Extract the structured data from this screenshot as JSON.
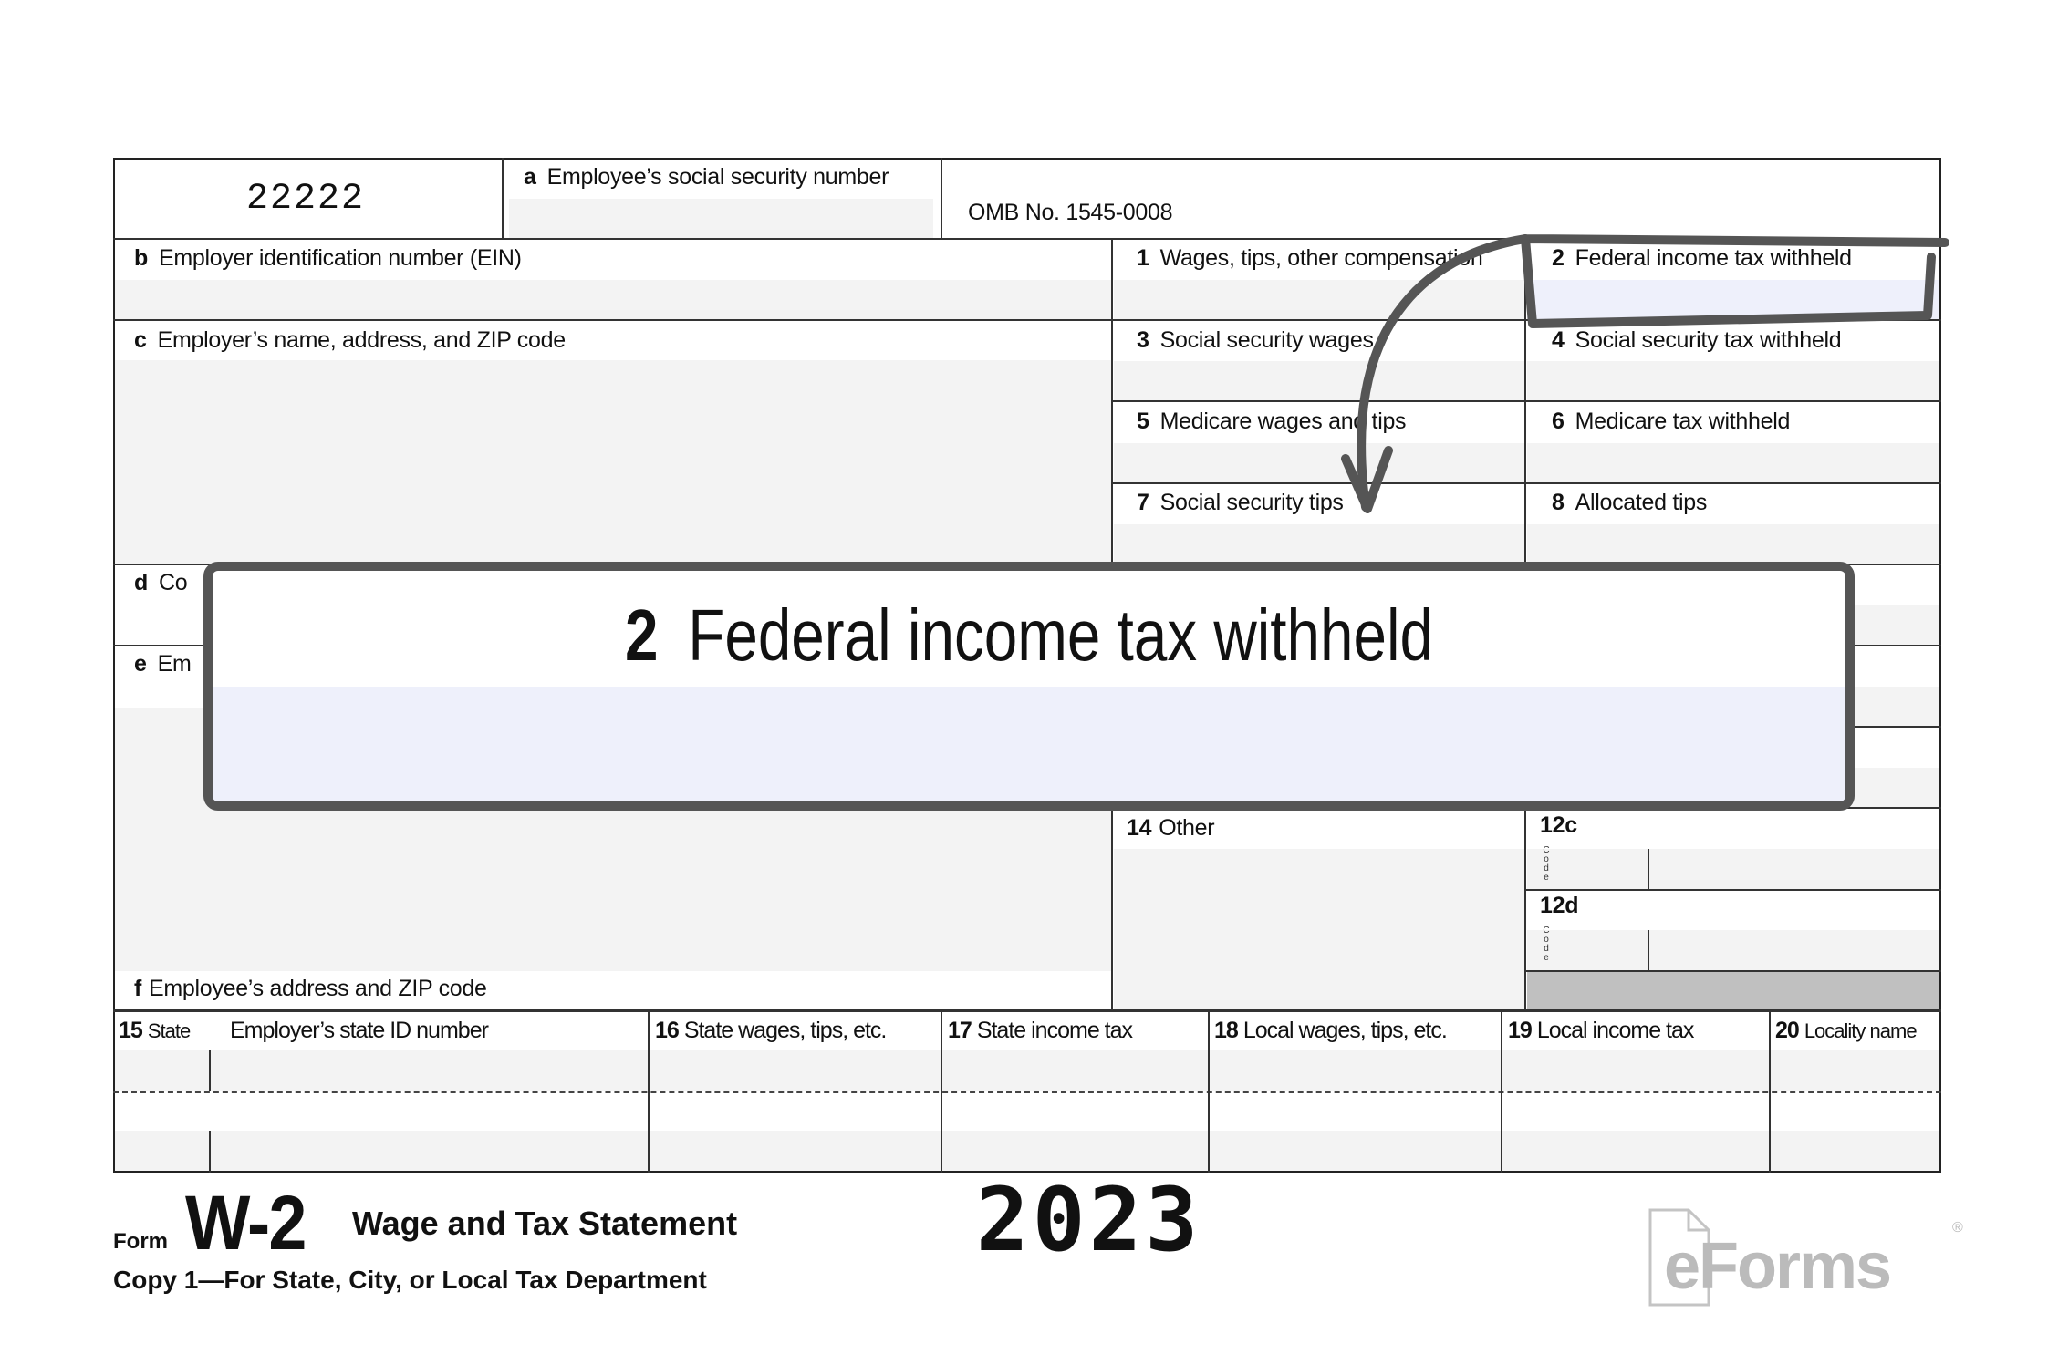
{
  "form": {
    "control_code": "22222",
    "box_a": {
      "letter": "a",
      "label": "Employee’s social security number"
    },
    "omb": "OMB No. 1545-0008",
    "box_b": {
      "letter": "b",
      "label": "Employer identification number (EIN)"
    },
    "box_c": {
      "letter": "c",
      "label": "Employer’s name, address, and ZIP code"
    },
    "box_d": {
      "letter": "d",
      "label": "Co"
    },
    "box_e": {
      "letter": "e",
      "label": "Em"
    },
    "box_f": {
      "letter": "f",
      "label": "Employee’s address and ZIP code"
    },
    "boxes": [
      {
        "num": "1",
        "label": "Wages, tips, other compensation"
      },
      {
        "num": "2",
        "label": "Federal income tax withheld"
      },
      {
        "num": "3",
        "label": "Social security wages"
      },
      {
        "num": "4",
        "label": "Social security tax withheld"
      },
      {
        "num": "5",
        "label": "Medicare wages and tips"
      },
      {
        "num": "6",
        "label": "Medicare tax withheld"
      },
      {
        "num": "7",
        "label": "Social security tips"
      },
      {
        "num": "8",
        "label": "Allocated tips"
      }
    ],
    "box_14": {
      "num": "14",
      "label": "Other"
    },
    "box_12c": {
      "num": "12c",
      "code_label": "Code"
    },
    "box_12d": {
      "num": "12d",
      "code_label": "Code"
    },
    "state_row": [
      {
        "num": "15",
        "label": "State"
      },
      {
        "num": "",
        "label": "Employer’s state ID number"
      },
      {
        "num": "16",
        "label": "State wages, tips, etc."
      },
      {
        "num": "17",
        "label": "State income tax"
      },
      {
        "num": "18",
        "label": "Local wages, tips, etc."
      },
      {
        "num": "19",
        "label": "Local income tax"
      },
      {
        "num": "20",
        "label": "Locality name"
      }
    ]
  },
  "footer": {
    "form_word": "Form",
    "form_name": "W-2",
    "form_title": "Wage and Tax Statement",
    "year": "2023",
    "copy": "Copy 1—For State, City, or Local Tax Department",
    "logo": "eForms",
    "logo_mark": "®"
  },
  "callout": {
    "num": "2",
    "label": "Federal income tax withheld"
  },
  "colors": {
    "annotation": "#555555",
    "highlight_fill": "#eef0fb",
    "field_fill": "#f3f3f3",
    "logo": "#bbbbbb"
  }
}
